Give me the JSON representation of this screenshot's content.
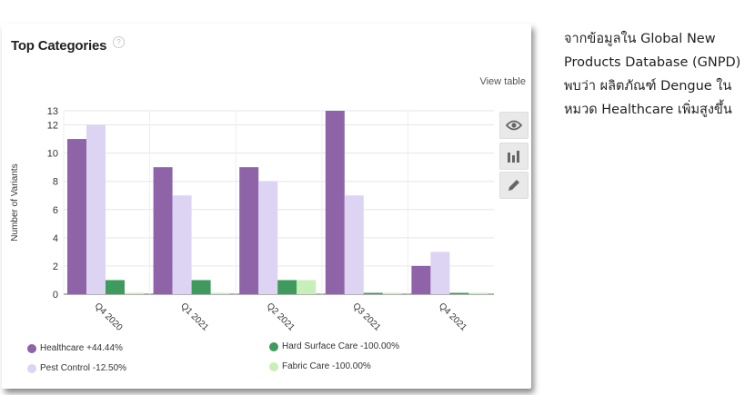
{
  "card": {
    "title": "Top Categories",
    "help_icon": "?",
    "view_table": "View table"
  },
  "side_buttons": [
    "eye-icon",
    "bar-chart-icon",
    "pencil-icon"
  ],
  "note": {
    "text": "จากข้อมูลใน Global New Products Database (GNPD) พบว่า ผลิตภัณฑ์ Dengue ในหมวด Healthcare เพิ่มสูงขึ้น"
  },
  "chart_data": {
    "type": "bar",
    "ylabel": "Number of Variants",
    "xlabel": "",
    "ylim": [
      0,
      13
    ],
    "yticks": [
      0,
      2,
      4,
      6,
      8,
      10,
      12,
      13
    ],
    "categories": [
      "Q4 2020",
      "Q1 2021",
      "Q2 2021",
      "Q3 2021",
      "Q4 2021"
    ],
    "series": [
      {
        "name": "Healthcare +44.44%",
        "color": "#8e63a8",
        "values": [
          11,
          9,
          9,
          13,
          2
        ]
      },
      {
        "name": "Pest Control -12.50%",
        "color": "#ddd3f3",
        "values": [
          12,
          7,
          8,
          7,
          3
        ]
      },
      {
        "name": "Hard Surface Care -100.00%",
        "color": "#3f9a5e",
        "values": [
          1,
          1,
          1,
          0,
          0
        ]
      },
      {
        "name": "Fabric Care -100.00%",
        "color": "#c9efb9",
        "values": [
          0,
          0,
          1,
          0,
          0
        ]
      }
    ],
    "legend_placement": "bottom",
    "grid": true
  }
}
